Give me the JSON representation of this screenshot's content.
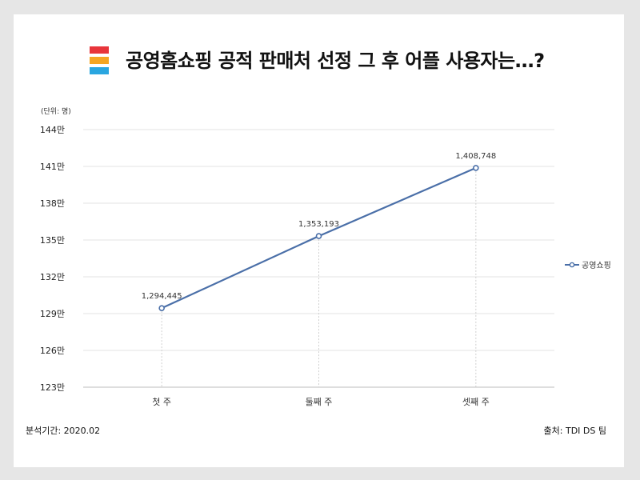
{
  "page": {
    "title": "공영홈쇼핑 공적 판매처 선정 그 후 어플 사용자는…?",
    "logo_colors": [
      "#e8353b",
      "#f5a623",
      "#2aa6e0"
    ],
    "footer_period": "분석기간: 2020.02",
    "footer_source": "출처: TDI DS 팀"
  },
  "chart_data": {
    "type": "line",
    "unit_label": "(단위: 명)",
    "categories": [
      "첫 주",
      "둘째 주",
      "셋째 주"
    ],
    "series": [
      {
        "name": "공영쇼핑",
        "values": [
          1294445,
          1353193,
          1408748
        ],
        "labels": [
          "1,294,445",
          "1,353,193",
          "1,408,748"
        ],
        "color": "#4a6fa8"
      }
    ],
    "y_ticks": [
      1230000,
      1260000,
      1290000,
      1320000,
      1350000,
      1380000,
      1410000,
      1440000
    ],
    "y_tick_labels": [
      "123만",
      "126만",
      "129만",
      "132만",
      "135만",
      "138만",
      "141만",
      "144만"
    ],
    "ylim": [
      1230000,
      1440000
    ],
    "grid": true,
    "legend_position": "right"
  }
}
